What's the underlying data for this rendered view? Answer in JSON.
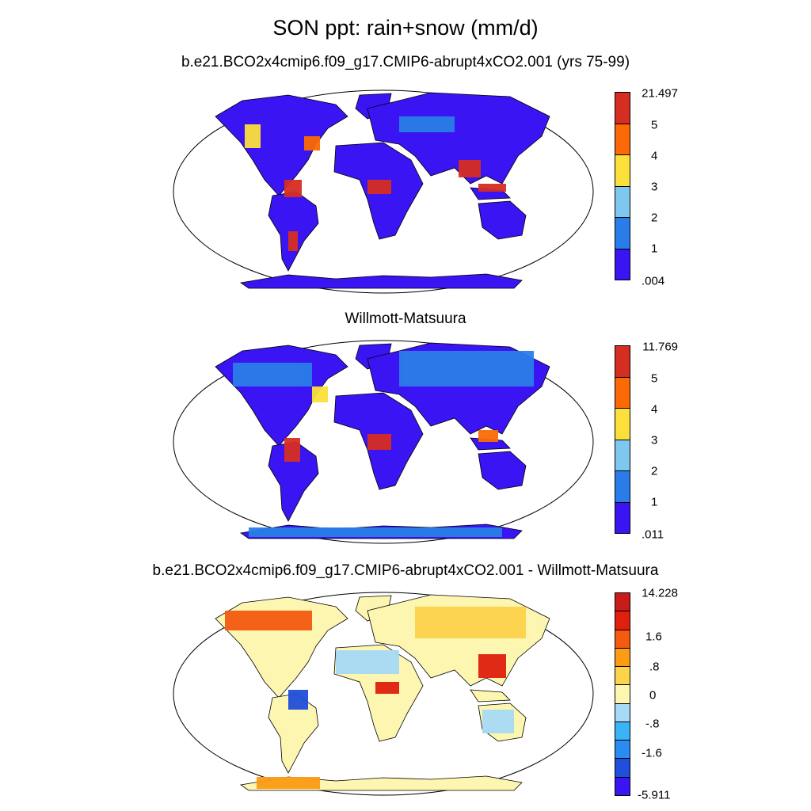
{
  "title": "SON ppt: rain+snow (mm/d)",
  "panels": [
    {
      "subtitle": "b.e21.BCO2x4cmip6.f09_g17.CMIP6-abrupt4xCO2.001 (yrs 75-99)",
      "colorbar": {
        "colors": [
          "#3a14f2",
          "#2a7de8",
          "#7ec8ef",
          "#fbe03b",
          "#fb6a06",
          "#d62d22"
        ],
        "labels": [
          ".004",
          "1",
          "2",
          "3",
          "4",
          "5",
          "21.497"
        ]
      }
    },
    {
      "subtitle": "Willmott-Matsuura",
      "colorbar": {
        "colors": [
          "#3a14f2",
          "#2a7de8",
          "#7ec8ef",
          "#fbe03b",
          "#fb6a06",
          "#d62d22"
        ],
        "labels": [
          ".011",
          "1",
          "2",
          "3",
          "4",
          "5",
          "11.769"
        ]
      }
    },
    {
      "subtitle": "b.e21.BCO2x4cmip6.f09_g17.CMIP6-abrupt4xCO2.001 - Willmott-Matsuura",
      "colorbar": {
        "colors": [
          "#3a14f2",
          "#1f4fdb",
          "#2a8cf0",
          "#38b4f7",
          "#a7daf6",
          "#fdf6b0",
          "#fcd34a",
          "#fb9c14",
          "#f45a10",
          "#e0200d",
          "#c81c1c"
        ],
        "labels": [
          "-5.911",
          "-1.6",
          "-.8",
          "0",
          ".8",
          "1.6",
          "14.228"
        ]
      }
    }
  ]
}
